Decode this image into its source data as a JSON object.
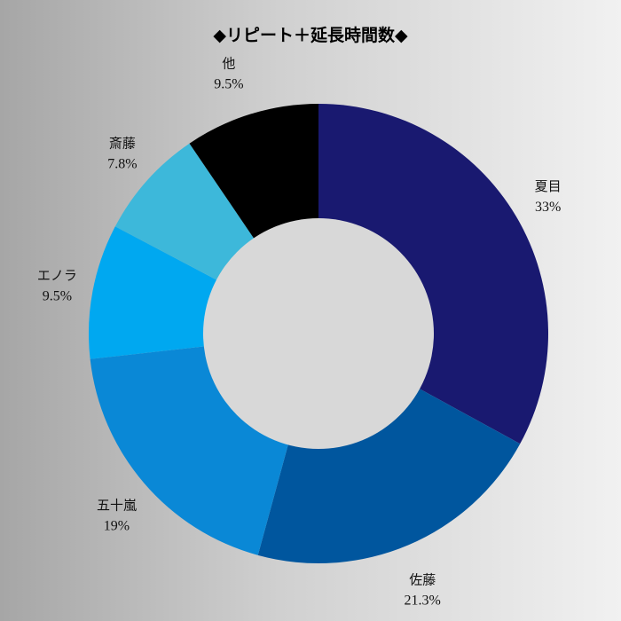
{
  "chart_data": {
    "type": "pie",
    "title": "◆リピート＋延長時間数◆",
    "hole_color": "#d8d8d8",
    "slices": [
      {
        "name": "夏目",
        "value": 33,
        "label": "33%",
        "color": "#191970"
      },
      {
        "name": "佐藤",
        "value": 21.3,
        "label": "21.3%",
        "color": "#00569e"
      },
      {
        "name": "五十嵐",
        "value": 19,
        "label": "19%",
        "color": "#0a88d6"
      },
      {
        "name": "エノラ",
        "value": 9.5,
        "label": "9.5%",
        "color": "#00a8f0"
      },
      {
        "name": "斎藤",
        "value": 7.8,
        "label": "7.8%",
        "color": "#3db8da"
      },
      {
        "name": "他",
        "value": 9.5,
        "label": "9.5%",
        "color": "#000000"
      }
    ]
  }
}
